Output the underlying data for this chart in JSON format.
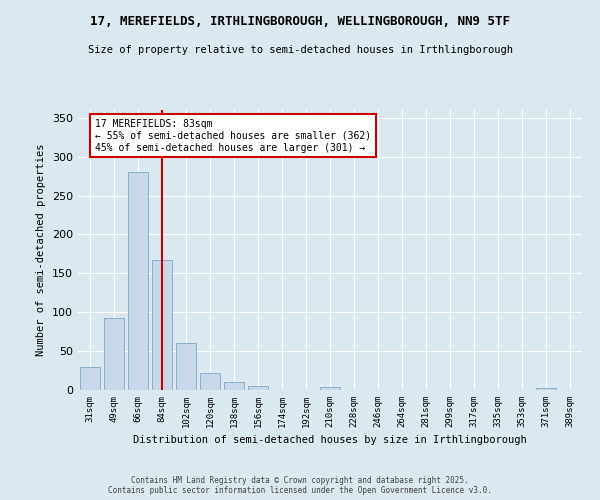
{
  "title_line1": "17, MEREFIELDS, IRTHLINGBOROUGH, WELLINGBOROUGH, NN9 5TF",
  "title_line2": "Size of property relative to semi-detached houses in Irthlingborough",
  "xlabel": "Distribution of semi-detached houses by size in Irthlingborough",
  "ylabel": "Number of semi-detached properties",
  "categories": [
    "31sqm",
    "49sqm",
    "66sqm",
    "84sqm",
    "102sqm",
    "120sqm",
    "138sqm",
    "156sqm",
    "174sqm",
    "192sqm",
    "210sqm",
    "228sqm",
    "246sqm",
    "264sqm",
    "281sqm",
    "299sqm",
    "317sqm",
    "335sqm",
    "353sqm",
    "371sqm",
    "389sqm"
  ],
  "values": [
    30,
    93,
    280,
    167,
    60,
    22,
    10,
    5,
    0,
    0,
    4,
    0,
    0,
    0,
    0,
    0,
    0,
    0,
    0,
    2,
    0
  ],
  "bar_color": "#c8d8e8",
  "bar_edge_color": "#7aaac8",
  "vline_x_index": 3,
  "vline_color": "#cc0000",
  "annotation_text": "17 MEREFIELDS: 83sqm\n← 55% of semi-detached houses are smaller (362)\n45% of semi-detached houses are larger (301) →",
  "annotation_box_facecolor": "#ffffff",
  "annotation_box_edgecolor": "#cc0000",
  "background_color": "#dce8f0",
  "grid_color": "#ffffff",
  "footer_line1": "Contains HM Land Registry data © Crown copyright and database right 2025.",
  "footer_line2": "Contains public sector information licensed under the Open Government Licence v3.0.",
  "ylim": [
    0,
    360
  ],
  "yticks": [
    0,
    50,
    100,
    150,
    200,
    250,
    300,
    350
  ]
}
